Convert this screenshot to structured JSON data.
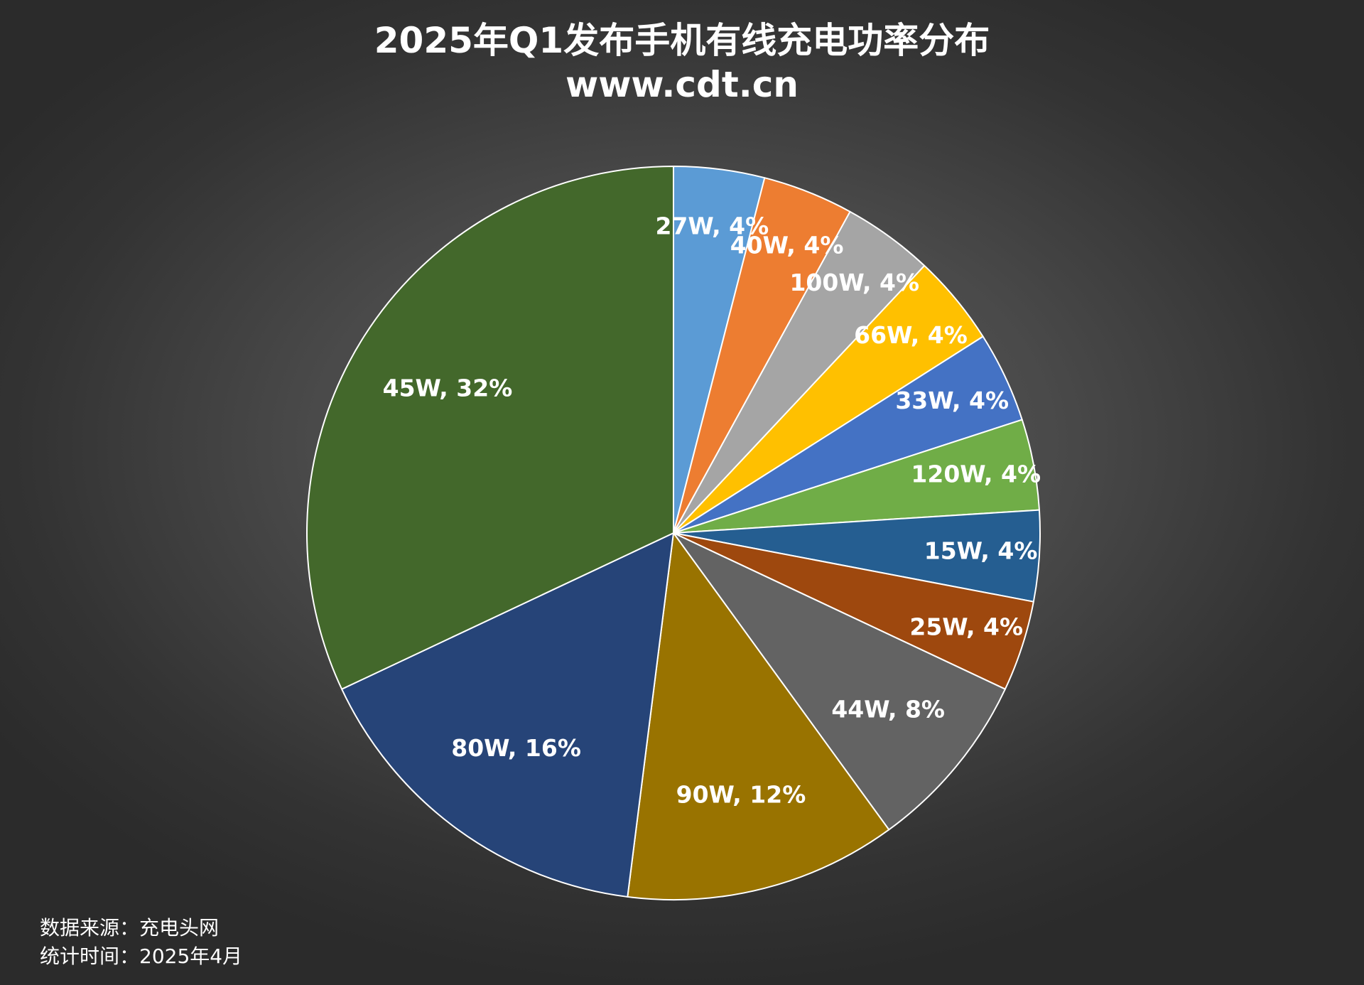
{
  "chart_data": {
    "type": "pie",
    "title": "2025年Q1发布手机有线充电功率分布",
    "subtitle": "www.cdt.cn",
    "start_angle": "12 o'clock",
    "direction": "clockwise",
    "slices": [
      {
        "label": "27W",
        "value": 4,
        "label_text": "27W, 4%",
        "color": "#5b9bd5"
      },
      {
        "label": "40W",
        "value": 4,
        "label_text": "40W, 4%",
        "color": "#ed7d31"
      },
      {
        "label": "100W",
        "value": 4,
        "label_text": "100W, 4%",
        "color": "#a5a5a5"
      },
      {
        "label": "66W",
        "value": 4,
        "label_text": "66W, 4%",
        "color": "#ffc000"
      },
      {
        "label": "33W",
        "value": 4,
        "label_text": "33W, 4%",
        "color": "#4472c4"
      },
      {
        "label": "120W",
        "value": 4,
        "label_text": "120W, 4%",
        "color": "#70ad47"
      },
      {
        "label": "15W",
        "value": 4,
        "label_text": "15W, 4%",
        "color": "#255e91"
      },
      {
        "label": "25W",
        "value": 4,
        "label_text": "25W, 4%",
        "color": "#9e480e"
      },
      {
        "label": "44W",
        "value": 8,
        "label_text": "44W, 8%",
        "color": "#636363"
      },
      {
        "label": "90W",
        "value": 12,
        "label_text": "90W, 12%",
        "color": "#997300"
      },
      {
        "label": "80W",
        "value": 16,
        "label_text": "80W, 16%",
        "color": "#264478"
      },
      {
        "label": "45W",
        "value": 32,
        "label_text": "45W, 32%",
        "color": "#43682b"
      }
    ]
  },
  "footer": {
    "source": "数据来源：充电头网",
    "date": "统计时间：2025年4月"
  }
}
